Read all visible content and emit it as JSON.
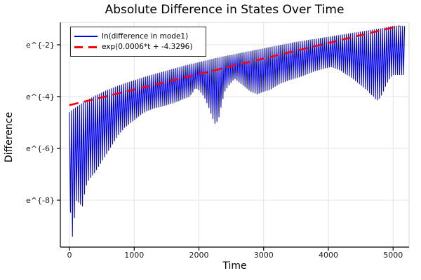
{
  "title": "Absolute Difference in States Over Time",
  "axes": {
    "x_label": "Time",
    "y_label": "Difference"
  },
  "legend": {
    "position": "top-left",
    "items": [
      {
        "label": "ln(difference in mode1)",
        "color": "#0000ee",
        "style": "solid"
      },
      {
        "label": "exp(0.0006*t + -4.3296)",
        "color": "#ff0000",
        "style": "dashed"
      }
    ]
  },
  "chart_data": {
    "type": "line",
    "title": "Absolute Difference in States Over Time",
    "xlabel": "Time",
    "ylabel": "Difference",
    "grid": true,
    "legend_position": "top-left",
    "x_ticks": [
      0,
      1000,
      2000,
      3000,
      4000,
      5000
    ],
    "y_ticks": [
      {
        "label": "e^{-2}",
        "ln": -2
      },
      {
        "label": "e^{-4}",
        "ln": -4
      },
      {
        "label": "e^{-6}",
        "ln": -6
      },
      {
        "label": "e^{-8}",
        "ln": -8
      }
    ],
    "xlim": [
      -140,
      5320
    ],
    "ylim_ln": [
      -9.81,
      -1.14
    ],
    "series": [
      {
        "name": "ln(difference in mode1)",
        "color": "#0000ee",
        "style": "oscillatory-band",
        "t_step": 50,
        "t_end": 5190,
        "cycle_period": 31,
        "t": [
          0,
          50,
          100,
          150,
          200,
          250,
          300,
          350,
          400,
          450,
          500,
          550,
          600,
          650,
          700,
          750,
          800,
          850,
          900,
          950,
          1000,
          1050,
          1100,
          1150,
          1200,
          1250,
          1300,
          1350,
          1400,
          1450,
          1500,
          1550,
          1600,
          1650,
          1700,
          1750,
          1800,
          1850,
          1900,
          1950,
          2000,
          2050,
          2100,
          2150,
          2200,
          2250,
          2300,
          2350,
          2400,
          2450,
          2500,
          2550,
          2600,
          2650,
          2700,
          2750,
          2800,
          2850,
          2900,
          2950,
          3000,
          3050,
          3100,
          3150,
          3200,
          3250,
          3300,
          3350,
          3400,
          3450,
          3500,
          3550,
          3600,
          3650,
          3700,
          3750,
          3800,
          3850,
          3900,
          3950,
          4000,
          4050,
          4100,
          4150,
          4200,
          4250,
          4300,
          4350,
          4400,
          4450,
          4500,
          4550,
          4600,
          4650,
          4700,
          4750,
          4800,
          4850,
          4900,
          4950,
          5000
        ],
        "upper_ln": [
          -4.6,
          -4.51,
          -4.42,
          -4.34,
          -4.26,
          -4.18,
          -4.11,
          -4.04,
          -3.97,
          -3.91,
          -3.85,
          -3.79,
          -3.74,
          -3.69,
          -3.64,
          -3.59,
          -3.55,
          -3.5,
          -3.46,
          -3.42,
          -3.38,
          -3.34,
          -3.3,
          -3.26,
          -3.22,
          -3.18,
          -3.15,
          -3.11,
          -3.08,
          -3.04,
          -3.01,
          -2.97,
          -2.94,
          -2.9,
          -2.87,
          -2.83,
          -2.8,
          -2.77,
          -2.74,
          -2.71,
          -2.68,
          -2.65,
          -2.62,
          -2.59,
          -2.56,
          -2.53,
          -2.5,
          -2.47,
          -2.45,
          -2.42,
          -2.4,
          -2.37,
          -2.35,
          -2.32,
          -2.3,
          -2.27,
          -2.25,
          -2.22,
          -2.2,
          -2.17,
          -2.15,
          -2.12,
          -2.1,
          -2.07,
          -2.05,
          -2.02,
          -2.0,
          -1.97,
          -1.95,
          -1.92,
          -1.9,
          -1.88,
          -1.86,
          -1.84,
          -1.82,
          -1.8,
          -1.78,
          -1.76,
          -1.74,
          -1.72,
          -1.7,
          -1.68,
          -1.66,
          -1.64,
          -1.62,
          -1.6,
          -1.58,
          -1.56,
          -1.54,
          -1.52,
          -1.5,
          -1.48,
          -1.46,
          -1.44,
          -1.42,
          -1.4,
          -1.38,
          -1.36,
          -1.33,
          -1.31,
          -1.28
        ],
        "lower_ln": [
          -8.0,
          -9.5,
          -8.0,
          -8.1,
          -8.25,
          -7.5,
          -7.2,
          -7.05,
          -6.9,
          -6.7,
          -6.5,
          -6.3,
          -6.1,
          -5.9,
          -5.7,
          -5.5,
          -5.35,
          -5.2,
          -5.1,
          -5.0,
          -4.9,
          -4.8,
          -4.7,
          -4.62,
          -4.55,
          -4.5,
          -4.45,
          -4.42,
          -4.4,
          -4.36,
          -4.32,
          -4.28,
          -4.25,
          -4.2,
          -4.15,
          -4.1,
          -4.05,
          -4.0,
          -3.85,
          -3.65,
          -3.75,
          -3.9,
          -4.1,
          -4.4,
          -4.75,
          -5.05,
          -4.9,
          -4.3,
          -3.8,
          -3.6,
          -3.45,
          -3.3,
          -3.4,
          -3.5,
          -3.6,
          -3.7,
          -3.8,
          -3.85,
          -3.9,
          -3.85,
          -3.8,
          -3.77,
          -3.73,
          -3.65,
          -3.57,
          -3.5,
          -3.45,
          -3.4,
          -3.35,
          -3.32,
          -3.28,
          -3.24,
          -3.2,
          -3.15,
          -3.1,
          -3.05,
          -3.0,
          -2.97,
          -2.94,
          -2.9,
          -2.87,
          -2.85,
          -2.9,
          -2.95,
          -3.0,
          -3.1,
          -3.17,
          -3.25,
          -3.35,
          -3.45,
          -3.55,
          -3.65,
          -3.75,
          -3.9,
          -4.0,
          -4.15,
          -4.05,
          -3.8,
          -3.5,
          -3.3,
          -3.15
        ]
      },
      {
        "name": "exp(0.0006*t + -4.3296)",
        "color": "#ff0000",
        "style": "dashed",
        "slope": 0.0006,
        "intercept": -4.3296,
        "t_range": [
          0,
          5100
        ]
      }
    ]
  },
  "style": {
    "grid_color": "#e4e4e4",
    "axis_color": "#000000",
    "frame_light_color": "#d8d8d8",
    "tick_label_color": "#1a1a1a"
  }
}
